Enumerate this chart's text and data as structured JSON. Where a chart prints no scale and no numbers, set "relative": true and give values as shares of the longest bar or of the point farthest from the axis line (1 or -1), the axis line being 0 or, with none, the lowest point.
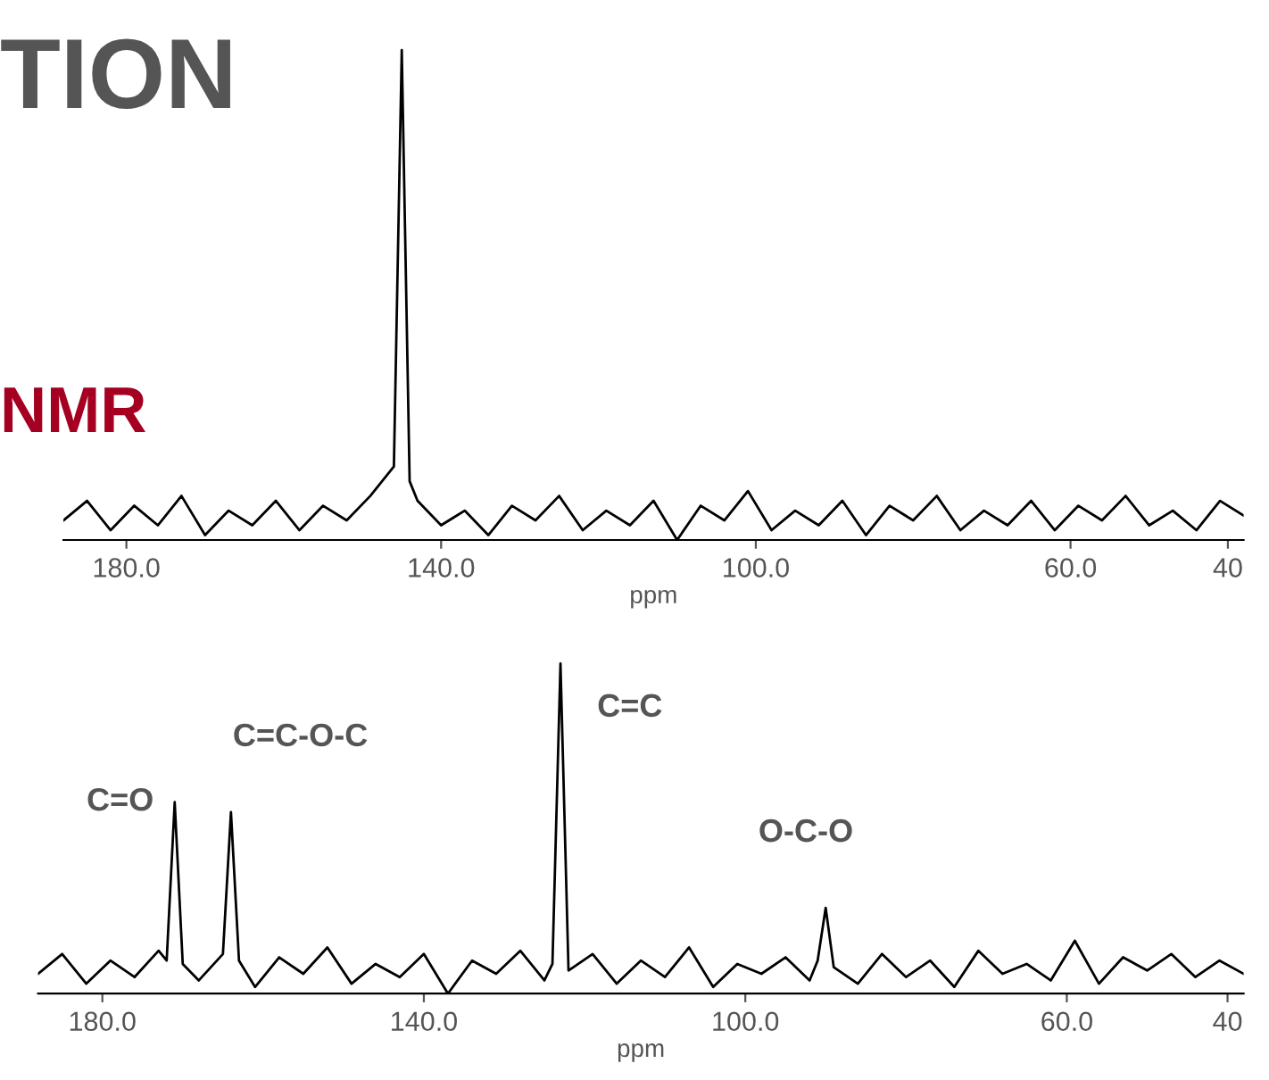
{
  "chart_data": [
    {
      "type": "line",
      "title": "TION",
      "subtitle": "NMR",
      "xlabel": "ppm",
      "relative": true,
      "tick_labels": "x",
      "grid": false,
      "legend": false,
      "xlim": [
        188,
        38
      ],
      "xticks": [
        {
          "value": 180,
          "label": "180.0"
        },
        {
          "value": 140,
          "label": "140.0"
        },
        {
          "value": 100,
          "label": "100.0"
        },
        {
          "value": 60,
          "label": "60.0"
        },
        40
      ],
      "series": [
        {
          "color": "#000000",
          "x": [
            188,
            185,
            182,
            179,
            176,
            173,
            170,
            167,
            164,
            161,
            158,
            155,
            152,
            149,
            146,
            145,
            144,
            143,
            140,
            137,
            134,
            131,
            128,
            125,
            122,
            119,
            116,
            113,
            110,
            107,
            104,
            101,
            98,
            95,
            92,
            89,
            86,
            83,
            80,
            77,
            74,
            71,
            68,
            65,
            62,
            59,
            56,
            53,
            50,
            47,
            44,
            41,
            38
          ],
          "values": [
            0.04,
            0.08,
            0.02,
            0.07,
            0.03,
            0.09,
            0.01,
            0.06,
            0.03,
            0.08,
            0.02,
            0.07,
            0.04,
            0.09,
            0.15,
            1,
            0.12,
            0.08,
            0.03,
            0.06,
            0.01,
            0.07,
            0.04,
            0.09,
            0.02,
            0.06,
            0.03,
            0.08,
            0.0,
            0.07,
            0.04,
            0.1,
            0.02,
            0.06,
            0.03,
            0.08,
            0.01,
            0.07,
            0.04,
            0.09,
            0.02,
            0.06,
            0.03,
            0.08,
            0.02,
            0.07,
            0.04,
            0.09,
            0.03,
            0.06,
            0.02,
            0.08,
            0.05
          ]
        }
      ]
    },
    {
      "type": "line",
      "xlabel": "ppm",
      "relative": true,
      "tick_labels": "x",
      "grid": false,
      "legend": false,
      "xlim": [
        188,
        38
      ],
      "xticks": [
        {
          "value": 180,
          "label": "180.0"
        },
        {
          "value": 140,
          "label": "140.0"
        },
        {
          "value": 100,
          "label": "100.0"
        },
        {
          "value": 60,
          "label": "60.0"
        },
        40
      ],
      "annotations": [
        {
          "text": "C=O",
          "x": 171,
          "y": 0.58
        },
        {
          "text": "C=C-O-C",
          "x": 164,
          "y": 0.55
        },
        {
          "text": "C=C",
          "x": 123,
          "y": 1
        },
        {
          "text": "O-C-O",
          "x": 90,
          "y": 0.26
        }
      ],
      "series": [
        {
          "color": "#000000",
          "x": [
            188,
            185,
            182,
            179,
            176,
            173,
            172,
            171,
            170,
            168,
            165,
            164,
            163,
            161,
            158,
            155,
            152,
            149,
            146,
            143,
            140,
            137,
            134,
            131,
            128,
            125,
            124,
            123,
            122,
            119,
            116,
            113,
            110,
            107,
            104,
            101,
            98,
            95,
            92,
            91,
            90,
            89,
            86,
            83,
            80,
            77,
            74,
            71,
            68,
            65,
            62,
            59,
            56,
            53,
            50,
            47,
            44,
            41,
            38
          ],
          "values": [
            0.06,
            0.12,
            0.03,
            0.1,
            0.05,
            0.13,
            0.1,
            0.58,
            0.09,
            0.04,
            0.12,
            0.55,
            0.1,
            0.02,
            0.11,
            0.06,
            0.14,
            0.03,
            0.09,
            0.05,
            0.12,
            0.0,
            0.1,
            0.06,
            0.13,
            0.04,
            0.09,
            1,
            0.07,
            0.12,
            0.03,
            0.1,
            0.05,
            0.14,
            0.02,
            0.09,
            0.06,
            0.11,
            0.04,
            0.1,
            0.26,
            0.08,
            0.03,
            0.12,
            0.05,
            0.1,
            0.02,
            0.13,
            0.06,
            0.09,
            0.04,
            0.16,
            0.03,
            0.11,
            0.07,
            0.12,
            0.05,
            0.1,
            0.06
          ]
        }
      ]
    }
  ]
}
